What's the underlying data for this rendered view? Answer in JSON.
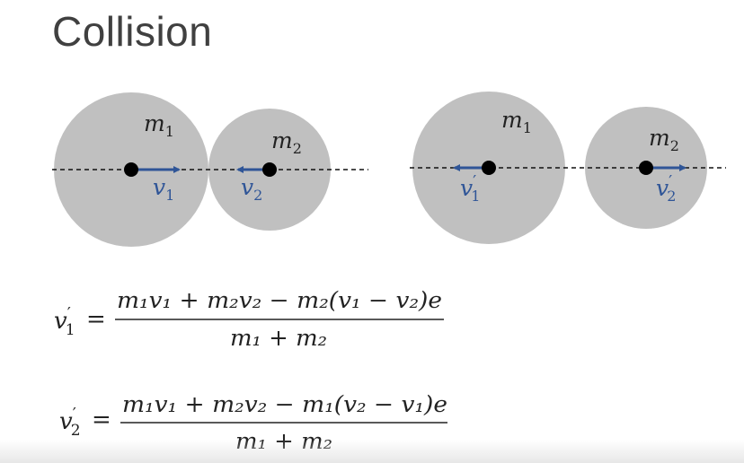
{
  "slide": {
    "title": "Collision"
  },
  "before": {
    "mass1": "m",
    "mass1_sub": "1",
    "mass2": "m",
    "mass2_sub": "2",
    "vel1": "v",
    "vel1_sub": "1",
    "vel2": "v",
    "vel2_sub": "2"
  },
  "after": {
    "mass1": "m",
    "mass1_sub": "1",
    "mass2": "m",
    "mass2_sub": "2",
    "vel1": "v",
    "vel1_sub": "1",
    "vel1_prime": "′",
    "vel2": "v",
    "vel2_sub": "2",
    "vel2_prime": "′"
  },
  "equation1": {
    "lhs": "v",
    "lhs_prime": "′",
    "lhs_sub": "1",
    "equals": "=",
    "numerator": "m₁v₁ + m₂v₂ − m₂(v₁ − v₂)e",
    "denominator": "m₁ + m₂"
  },
  "equation2": {
    "lhs": "v",
    "lhs_prime": "′",
    "lhs_sub": "2",
    "equals": "=",
    "numerator": "m₁v₁ + m₂v₂ − m₁(v₂ − v₁)e",
    "denominator": "m₁ + m₂"
  },
  "colors": {
    "ball": "#c0c0c0",
    "arrow": "#2f5597",
    "text": "#404040",
    "ink": "#222222"
  }
}
